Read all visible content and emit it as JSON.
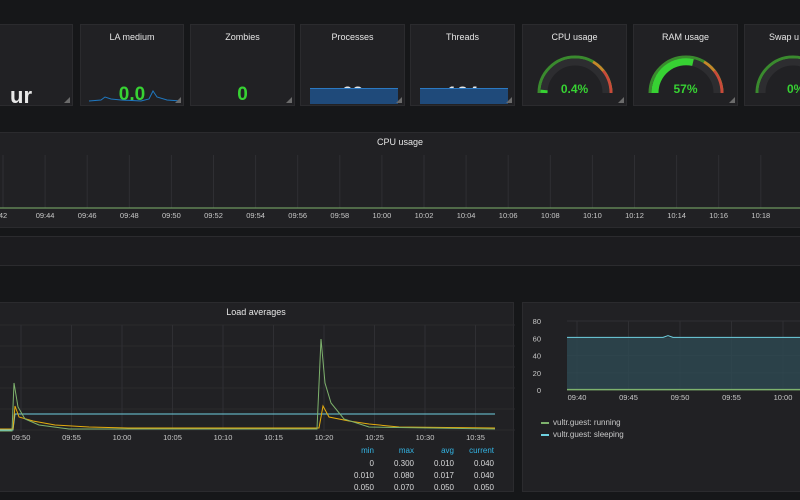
{
  "stats": [
    {
      "title": "",
      "value": "ur",
      "color": "white"
    },
    {
      "title": "LA medium",
      "value": "0.0",
      "color": "green"
    },
    {
      "title": "Zombies",
      "value": "0",
      "color": "green"
    },
    {
      "title": "Processes",
      "value": "62",
      "color": "white"
    },
    {
      "title": "Threads",
      "value": "124",
      "color": "white"
    }
  ],
  "gauges": [
    {
      "title": "CPU usage",
      "value": "0.4%",
      "fraction": 0.004
    },
    {
      "title": "RAM usage",
      "value": "57%",
      "fraction": 0.57
    },
    {
      "title": "Swap u",
      "value": "0%",
      "fraction": 0.0
    }
  ],
  "cpu_panel": {
    "title": "CPU usage",
    "ticks": [
      "42",
      "09:44",
      "09:46",
      "09:48",
      "09:50",
      "09:52",
      "09:54",
      "09:56",
      "09:58",
      "10:00",
      "10:02",
      "10:04",
      "10:06",
      "10:08",
      "10:10",
      "10:12",
      "10:14",
      "10:16",
      "10:18"
    ]
  },
  "load_panel": {
    "title": "Load averages",
    "ticks": [
      "09:50",
      "09:55",
      "10:00",
      "10:05",
      "10:10",
      "10:15",
      "10:20",
      "10:25",
      "10:30",
      "10:35"
    ],
    "table": {
      "headers": [
        "min",
        "max",
        "avg",
        "current"
      ],
      "rows": [
        [
          "0",
          "0.300",
          "0.010",
          "0.040"
        ],
        [
          "0.010",
          "0.080",
          "0.017",
          "0.040"
        ],
        [
          "0.050",
          "0.070",
          "0.050",
          "0.050"
        ]
      ]
    }
  },
  "proc_panel": {
    "y_ticks": [
      "80",
      "60",
      "40",
      "20",
      "0"
    ],
    "x_ticks": [
      "09:40",
      "09:45",
      "09:50",
      "09:55",
      "10:00"
    ],
    "legend": [
      {
        "name": "vultr.guest: running",
        "color": "#7eb26d"
      },
      {
        "name": "vultr.guest: sleeping",
        "color": "#6ed0e0"
      }
    ]
  },
  "colors": {
    "accent_green": "#37d233",
    "series_yellow": "#e5ac0e",
    "series_green": "#7eb26d",
    "series_cyan": "#6ed0e0"
  }
}
